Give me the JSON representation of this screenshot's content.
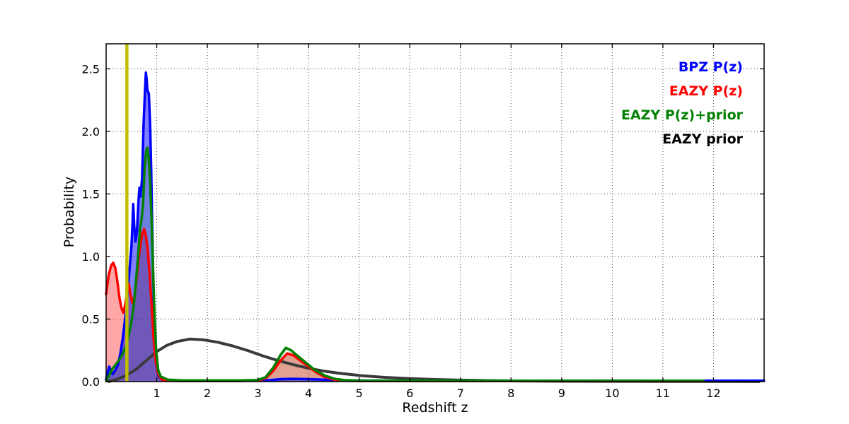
{
  "legend": {
    "items": [
      {
        "label": "BPZ P(z)",
        "color": "#0000ff"
      },
      {
        "label": "EAZY P(z)",
        "color": "#ff0000"
      },
      {
        "label": "EAZY P(z)+prior",
        "color": "#008000"
      },
      {
        "label": "EAZY prior",
        "color": "#000000"
      }
    ]
  },
  "chart_data": {
    "type": "line",
    "title": "",
    "xlabel": "Redshift z",
    "ylabel": "Probability",
    "xlim": [
      0,
      13
    ],
    "ylim": [
      0,
      2.7
    ],
    "xticks": [
      1,
      2,
      3,
      4,
      5,
      6,
      7,
      8,
      9,
      10,
      11,
      12
    ],
    "ytick_labels": [
      "0.0",
      "0.5",
      "1.0",
      "1.5",
      "2.0",
      "2.5"
    ],
    "ytick_values": [
      0,
      0.5,
      1.0,
      1.5,
      2.0,
      2.5
    ],
    "grid": "dotted",
    "legend_position": "upper right",
    "marker_line": {
      "x": 0.41,
      "color": "#bfbf00"
    },
    "series": [
      {
        "name": "BPZ P(z)",
        "color": "#0000ff",
        "fill": true,
        "fill_opacity": 0.5,
        "points": [
          [
            0,
            0.02
          ],
          [
            0.03,
            0.07
          ],
          [
            0.06,
            0.12
          ],
          [
            0.09,
            0.09
          ],
          [
            0.13,
            0.06
          ],
          [
            0.18,
            0.09
          ],
          [
            0.23,
            0.13
          ],
          [
            0.28,
            0.22
          ],
          [
            0.33,
            0.35
          ],
          [
            0.38,
            0.52
          ],
          [
            0.42,
            0.68
          ],
          [
            0.46,
            0.88
          ],
          [
            0.5,
            1.08
          ],
          [
            0.52,
            1.25
          ],
          [
            0.535,
            1.42
          ],
          [
            0.555,
            1.25
          ],
          [
            0.58,
            1.12
          ],
          [
            0.61,
            1.2
          ],
          [
            0.64,
            1.45
          ],
          [
            0.66,
            1.55
          ],
          [
            0.68,
            1.48
          ],
          [
            0.71,
            1.62
          ],
          [
            0.74,
            2.05
          ],
          [
            0.77,
            2.35
          ],
          [
            0.785,
            2.47
          ],
          [
            0.8,
            2.42
          ],
          [
            0.815,
            2.33
          ],
          [
            0.845,
            2.3
          ],
          [
            0.87,
            2.05
          ],
          [
            0.89,
            1.7
          ],
          [
            0.91,
            1.25
          ],
          [
            0.93,
            0.85
          ],
          [
            0.95,
            0.5
          ],
          [
            0.97,
            0.27
          ],
          [
            1.0,
            0.11
          ],
          [
            1.04,
            0.04
          ],
          [
            1.1,
            0.015
          ],
          [
            1.3,
            0.008
          ],
          [
            2.0,
            0.007
          ],
          [
            3.0,
            0.008
          ],
          [
            3.25,
            0.012
          ],
          [
            3.45,
            0.02
          ],
          [
            3.7,
            0.022
          ],
          [
            4.0,
            0.02
          ],
          [
            4.3,
            0.015
          ],
          [
            4.6,
            0.009
          ],
          [
            5.5,
            0.007
          ],
          [
            7,
            0.007
          ],
          [
            9,
            0.007
          ],
          [
            11,
            0.007
          ],
          [
            13,
            0.007
          ]
        ]
      },
      {
        "name": "EAZY P(z)",
        "color": "#ff0000",
        "fill": true,
        "fill_opacity": 0.35,
        "points": [
          [
            0,
            0.7
          ],
          [
            0.05,
            0.85
          ],
          [
            0.1,
            0.93
          ],
          [
            0.14,
            0.95
          ],
          [
            0.18,
            0.91
          ],
          [
            0.22,
            0.81
          ],
          [
            0.26,
            0.68
          ],
          [
            0.3,
            0.59
          ],
          [
            0.34,
            0.55
          ],
          [
            0.38,
            0.62
          ],
          [
            0.42,
            0.73
          ],
          [
            0.45,
            0.78
          ],
          [
            0.48,
            0.7
          ],
          [
            0.52,
            0.63
          ],
          [
            0.56,
            0.68
          ],
          [
            0.6,
            0.82
          ],
          [
            0.64,
            0.98
          ],
          [
            0.68,
            1.1
          ],
          [
            0.72,
            1.19
          ],
          [
            0.75,
            1.22
          ],
          [
            0.78,
            1.18
          ],
          [
            0.82,
            1.06
          ],
          [
            0.86,
            0.86
          ],
          [
            0.9,
            0.6
          ],
          [
            0.94,
            0.34
          ],
          [
            0.98,
            0.16
          ],
          [
            1.03,
            0.06
          ],
          [
            1.09,
            0.02
          ],
          [
            1.18,
            0.006
          ],
          [
            1.6,
            0.004
          ],
          [
            2.6,
            0.004
          ],
          [
            3.0,
            0.008
          ],
          [
            3.15,
            0.025
          ],
          [
            3.3,
            0.085
          ],
          [
            3.45,
            0.17
          ],
          [
            3.58,
            0.225
          ],
          [
            3.7,
            0.21
          ],
          [
            3.85,
            0.165
          ],
          [
            4.0,
            0.12
          ],
          [
            4.15,
            0.075
          ],
          [
            4.3,
            0.04
          ],
          [
            4.5,
            0.016
          ],
          [
            4.7,
            0.007
          ],
          [
            5.2,
            0.004
          ],
          [
            6.5,
            0.004
          ],
          [
            8.5,
            0.004
          ],
          [
            10.5,
            0.004
          ],
          [
            11.8,
            0.004
          ]
        ]
      },
      {
        "name": "EAZY P(z)+prior",
        "color": "#008000",
        "fill": true,
        "fill_opacity": 0.12,
        "points": [
          [
            0,
            0.005
          ],
          [
            0.06,
            0.05
          ],
          [
            0.12,
            0.1
          ],
          [
            0.2,
            0.14
          ],
          [
            0.3,
            0.2
          ],
          [
            0.38,
            0.27
          ],
          [
            0.44,
            0.36
          ],
          [
            0.5,
            0.48
          ],
          [
            0.55,
            0.62
          ],
          [
            0.6,
            0.85
          ],
          [
            0.64,
            1.05
          ],
          [
            0.67,
            1.22
          ],
          [
            0.7,
            1.3
          ],
          [
            0.73,
            1.42
          ],
          [
            0.76,
            1.7
          ],
          [
            0.79,
            1.84
          ],
          [
            0.815,
            1.87
          ],
          [
            0.84,
            1.79
          ],
          [
            0.87,
            1.6
          ],
          [
            0.9,
            1.27
          ],
          [
            0.93,
            0.86
          ],
          [
            0.96,
            0.5
          ],
          [
            0.99,
            0.24
          ],
          [
            1.03,
            0.09
          ],
          [
            1.08,
            0.04
          ],
          [
            1.14,
            0.03
          ],
          [
            1.22,
            0.015
          ],
          [
            1.5,
            0.009
          ],
          [
            2.6,
            0.009
          ],
          [
            3.0,
            0.013
          ],
          [
            3.15,
            0.035
          ],
          [
            3.3,
            0.11
          ],
          [
            3.45,
            0.215
          ],
          [
            3.55,
            0.27
          ],
          [
            3.65,
            0.252
          ],
          [
            3.8,
            0.2
          ],
          [
            3.95,
            0.15
          ],
          [
            4.1,
            0.1
          ],
          [
            4.3,
            0.052
          ],
          [
            4.5,
            0.024
          ],
          [
            4.7,
            0.012
          ],
          [
            5.0,
            0.008
          ],
          [
            6.0,
            0.007
          ],
          [
            8.0,
            0.007
          ],
          [
            10.0,
            0.007
          ],
          [
            11.8,
            0.007
          ]
        ]
      },
      {
        "name": "EAZY prior",
        "color": "#3a3a3a",
        "fill": false,
        "fill_opacity": 0,
        "points": [
          [
            0.05,
            0.001
          ],
          [
            0.2,
            0.015
          ],
          [
            0.4,
            0.05
          ],
          [
            0.6,
            0.1
          ],
          [
            0.8,
            0.17
          ],
          [
            1.0,
            0.24
          ],
          [
            1.2,
            0.29
          ],
          [
            1.4,
            0.32
          ],
          [
            1.65,
            0.34
          ],
          [
            1.9,
            0.335
          ],
          [
            2.2,
            0.315
          ],
          [
            2.5,
            0.285
          ],
          [
            2.8,
            0.248
          ],
          [
            3.1,
            0.205
          ],
          [
            3.4,
            0.168
          ],
          [
            3.7,
            0.135
          ],
          [
            4.0,
            0.106
          ],
          [
            4.3,
            0.084
          ],
          [
            4.6,
            0.067
          ],
          [
            5.0,
            0.049
          ],
          [
            5.5,
            0.034
          ],
          [
            6.0,
            0.024
          ],
          [
            6.5,
            0.017
          ],
          [
            7.0,
            0.012
          ],
          [
            7.6,
            0.008
          ],
          [
            8.2,
            0.005
          ],
          [
            9.0,
            0.003
          ],
          [
            10.0,
            0.002
          ],
          [
            11.0,
            0.001
          ],
          [
            12.0,
            0.001
          ],
          [
            12.9,
            0.0005
          ]
        ]
      }
    ]
  }
}
